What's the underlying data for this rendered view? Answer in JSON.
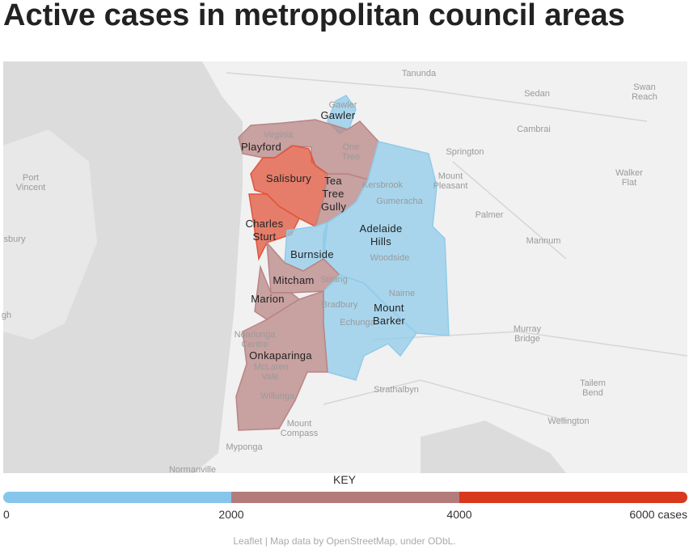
{
  "title": "Active cases in metropolitan council areas",
  "map": {
    "council_areas": [
      {
        "name": "Gawler",
        "color": "#8fcbea"
      },
      {
        "name": "Playford",
        "color": "#b98585"
      },
      {
        "name": "Salisbury",
        "color": "#e0553c"
      },
      {
        "name": "Tea Tree Gully",
        "color": "#b98585"
      },
      {
        "name": "Charles Sturt",
        "color": "#e0553c"
      },
      {
        "name": "Adelaide Hills",
        "color": "#8fcbea"
      },
      {
        "name": "Burnside",
        "color": "#8fcbea"
      },
      {
        "name": "Mitcham",
        "color": "#b98585"
      },
      {
        "name": "Marion",
        "color": "#b98585"
      },
      {
        "name": "Mount Barker",
        "color": "#8fcbea"
      },
      {
        "name": "Onkaparinga",
        "color": "#b98585"
      }
    ],
    "place_labels": [
      "Tanunda",
      "Sedan",
      "Swan Reach",
      "Cambrai",
      "Springton",
      "Mount Pleasant",
      "Port Vincent",
      "Walker Flat",
      "Palmer",
      "Mannum",
      "sbury",
      "gh",
      "Murray Bridge",
      "Strathalbyn",
      "Tailem Bend",
      "Wellington",
      "Mount Compass",
      "Myponga",
      "Normanville",
      "Gawler",
      "Virginia",
      "One Tree",
      "Kersbrook",
      "Gumeracha",
      "Woodside",
      "Stirling",
      "Nairne",
      "Bradbury",
      "Echunga",
      "Noarlunga Centre",
      "McLaren Vale",
      "Willunga"
    ]
  },
  "key": {
    "title": "KEY",
    "ticks": [
      0,
      2000,
      4000,
      {
        "value": 6000,
        "label": "6000 cases"
      }
    ],
    "colors": [
      "#86c6ea",
      "#b47b7b",
      "#d8381d"
    ]
  },
  "attribution": "Leaflet | Map data by OpenStreetMap, under ODbL."
}
